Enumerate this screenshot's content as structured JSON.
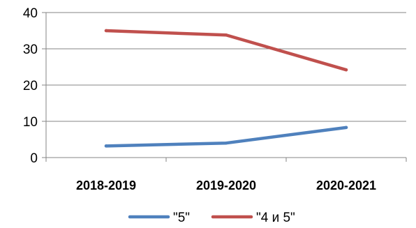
{
  "chart_data": {
    "type": "line",
    "categories": [
      "2018-2019",
      "2019-2020",
      "2020-2021"
    ],
    "series": [
      {
        "name": "\"5\"",
        "values": [
          3.2,
          4.0,
          8.3
        ],
        "color": "#4F81BD"
      },
      {
        "name": "\"4 и 5\"",
        "values": [
          35.0,
          33.8,
          24.2
        ],
        "color": "#C0504D"
      }
    ],
    "ylim": [
      0,
      40
    ],
    "yticks": [
      0,
      10,
      20,
      30,
      40
    ],
    "grid": true,
    "legend": "bottom"
  }
}
